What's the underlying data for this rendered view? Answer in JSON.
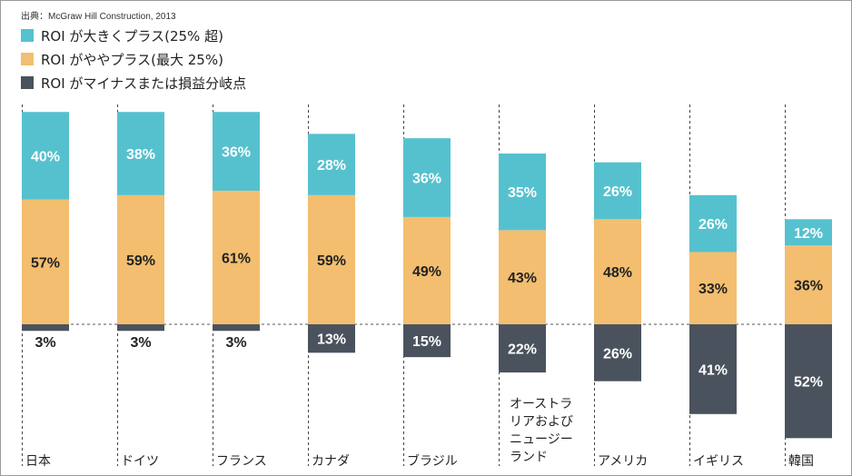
{
  "source": "出典：McGraw Hill Construction, 2013",
  "legend": [
    {
      "label": "ROI が大きくプラス(25% 超)",
      "color": "#56C1CE"
    },
    {
      "label": "ROI がややプラス(最大 25%)",
      "color": "#F3BE6F"
    },
    {
      "label": "ROI がマイナスまたは損益分岐点",
      "color": "#4A535D"
    }
  ],
  "chart_data": {
    "type": "bar",
    "stacked": true,
    "categories": [
      "日本",
      "ドイツ",
      "フランス",
      "カナダ",
      "ブラジル",
      "オーストラリアおよびニュージーランド",
      "アメリカ",
      "イギリス",
      "韓国"
    ],
    "category_lines": [
      [
        "日本"
      ],
      [
        "ドイツ"
      ],
      [
        "フランス"
      ],
      [
        "カナダ"
      ],
      [
        "ブラジル"
      ],
      [
        "オーストラ",
        "リアおよび",
        "ニュージー",
        "ランド"
      ],
      [
        "アメリカ"
      ],
      [
        "イギリス"
      ],
      [
        "韓国"
      ]
    ],
    "series": [
      {
        "name": "ROI が大きくプラス(25% 超)",
        "color": "#56C1CE",
        "values": [
          40,
          38,
          36,
          28,
          36,
          35,
          26,
          26,
          12
        ]
      },
      {
        "name": "ROI がややプラス(最大 25%)",
        "color": "#F3BE6F",
        "values": [
          57,
          59,
          61,
          59,
          49,
          43,
          48,
          33,
          36
        ]
      },
      {
        "name": "ROI がマイナスまたは損益分岐点",
        "color": "#4A535D",
        "values": [
          3,
          3,
          3,
          13,
          15,
          22,
          26,
          41,
          52
        ]
      }
    ],
    "value_labels": [
      [
        "40%",
        "38%",
        "36%",
        "28%",
        "36%",
        "35%",
        "26%",
        "26%",
        "12%"
      ],
      [
        "57%",
        "59%",
        "61%",
        "59%",
        "49%",
        "43%",
        "48%",
        "33%",
        "36%"
      ],
      [
        "3%",
        "3%",
        "3%",
        "13%",
        "15%",
        "22%",
        "26%",
        "41%",
        "52%"
      ]
    ],
    "label_colors": [
      "#ffffff",
      "#222222",
      "#ffffff"
    ],
    "legend_position": "top-left",
    "grid": false
  }
}
